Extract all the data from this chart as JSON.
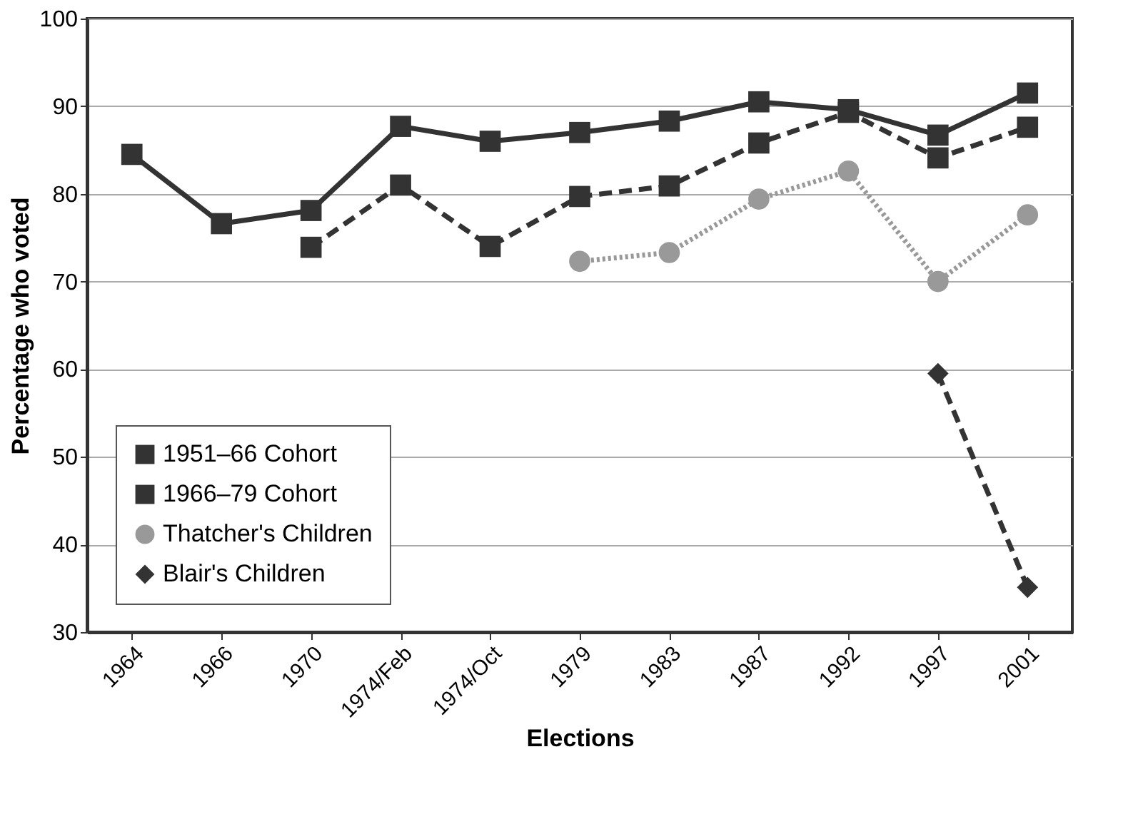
{
  "chart_data": {
    "type": "line",
    "xlabel": "Elections",
    "ylabel": "Percentage who voted",
    "categories": [
      "1964",
      "1966",
      "1970",
      "1974/Feb",
      "1974/Oct",
      "1979",
      "1983",
      "1987",
      "1992",
      "1997",
      "2001"
    ],
    "ylim": [
      30,
      100
    ],
    "yticks": [
      30,
      40,
      50,
      60,
      70,
      80,
      90,
      100
    ],
    "grid": "y",
    "legend": "bottom left",
    "series": [
      {
        "name": "1951–66 Cohort",
        "color": "#333333",
        "marker": "square",
        "line_style": "solid",
        "values": [
          84.5,
          76.6,
          78.1,
          87.7,
          86.0,
          87.0,
          88.3,
          90.5,
          89.6,
          86.7,
          91.5
        ]
      },
      {
        "name": "1966–79 Cohort",
        "color": "#333333",
        "marker": "square",
        "line_style": "dashed",
        "values": [
          null,
          null,
          73.9,
          81.0,
          74.0,
          79.7,
          80.9,
          85.8,
          89.3,
          84.1,
          87.6
        ]
      },
      {
        "name": "Thatcher's Children",
        "color": "#999999",
        "marker": "circle",
        "line_style": "dotted",
        "values": [
          null,
          null,
          null,
          null,
          null,
          72.3,
          73.3,
          79.4,
          82.6,
          70.0,
          77.6
        ]
      },
      {
        "name": "Blair's Children",
        "color": "#333333",
        "marker": "diamond",
        "line_style": "dashed",
        "values": [
          null,
          null,
          null,
          null,
          null,
          null,
          null,
          null,
          null,
          59.5,
          35.1
        ]
      }
    ]
  }
}
